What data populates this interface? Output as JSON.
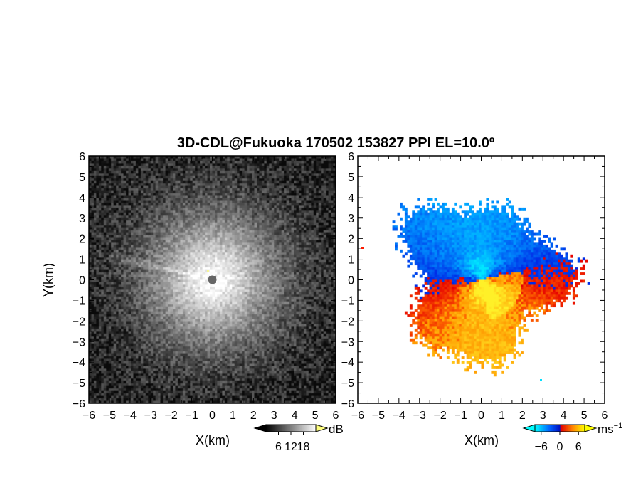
{
  "figure": {
    "title": "3D-CDL@Fukuoka 170502 153827 PPI EL=10.0º"
  },
  "chart_data": [
    {
      "type": "heatmap",
      "panel": "left",
      "field": "SNR",
      "xlabel": "X(km)",
      "ylabel": "Y(km)",
      "xlim": [
        -6,
        6
      ],
      "ylim": [
        -6,
        6
      ],
      "xticks": [
        "−6",
        "−5",
        "−4",
        "−3",
        "−2",
        "−1",
        "0",
        "1",
        "2",
        "3",
        "4",
        "5",
        "6"
      ],
      "yticks": [
        "−6",
        "−5",
        "−4",
        "−3",
        "−2",
        "−1",
        "0",
        "1",
        "2",
        "3",
        "4",
        "5",
        "6"
      ],
      "colormap": "grayscale",
      "colorbar": {
        "unit": "dB",
        "ticks": [
          "6",
          "12",
          "18"
        ],
        "range": [
          0,
          24
        ]
      },
      "description_values": {
        "bright_center_radius_km": 2.5,
        "fade_radius_km": 5.5
      }
    },
    {
      "type": "heatmap",
      "panel": "right",
      "field": "Doppler velocity",
      "xlabel": "X(km)",
      "xlim": [
        -6,
        6
      ],
      "ylim": [
        -6,
        6
      ],
      "xticks": [
        "−6",
        "−5",
        "−4",
        "−3",
        "−2",
        "−1",
        "0",
        "1",
        "2",
        "3",
        "4",
        "5",
        "6"
      ],
      "yticks": [
        "−6",
        "−5",
        "−4",
        "−3",
        "−2",
        "−1",
        "0",
        "1",
        "2",
        "3",
        "4",
        "5",
        "6"
      ],
      "colormap": "cyan-blue-red-yellow",
      "colorbar": {
        "unit": "ms",
        "unit_exponent": "−1",
        "ticks": [
          "−6",
          "0",
          "6"
        ],
        "range": [
          -8,
          8
        ]
      },
      "colors": {
        "cyan": "#00e0ff",
        "blue": "#0030ff",
        "red": "#ff1a00",
        "orange": "#ff8000",
        "yellow": "#ffee00",
        "white": "#fffbe0"
      }
    }
  ]
}
